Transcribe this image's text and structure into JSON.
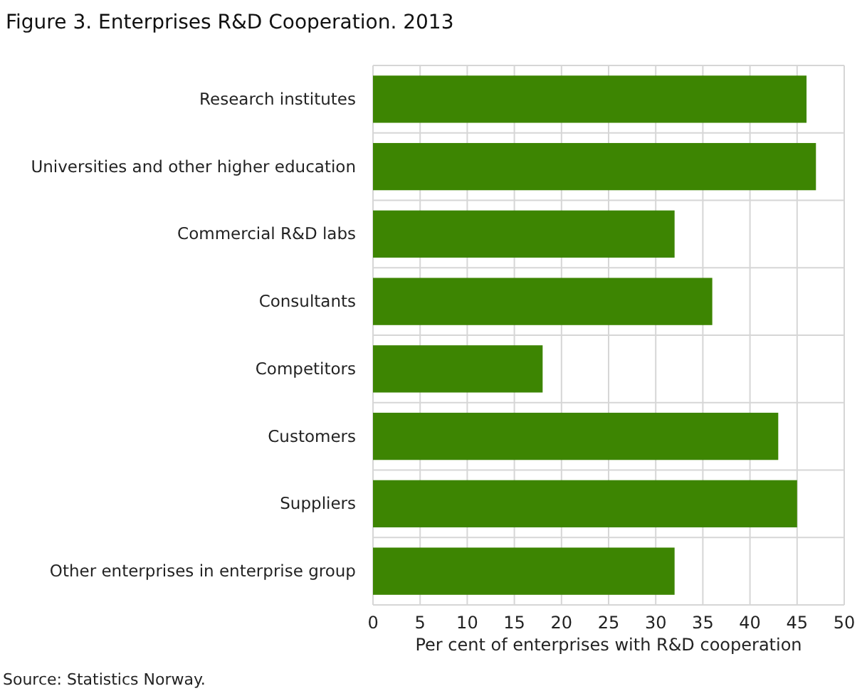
{
  "chart_data": {
    "type": "bar",
    "orientation": "horizontal",
    "title": "Figure 3. Enterprises R&D Cooperation. 2013",
    "xlabel": "Per cent of enterprises  with R&D cooperation",
    "categories": [
      "Research institutes",
      "Universities and other higher education",
      "Commercial R&D labs",
      "Consultants",
      "Competitors",
      "Customers",
      "Suppliers",
      "Other enterprises in enterprise group"
    ],
    "values": [
      46,
      47,
      32,
      36,
      18,
      43,
      45,
      32
    ],
    "color": "#3d8502",
    "xlim": [
      0,
      50
    ],
    "xticks": [
      0,
      5,
      10,
      15,
      20,
      25,
      30,
      35,
      40,
      45,
      50
    ],
    "grid": true,
    "annotations": [
      "Source: Statistics Norway."
    ]
  }
}
